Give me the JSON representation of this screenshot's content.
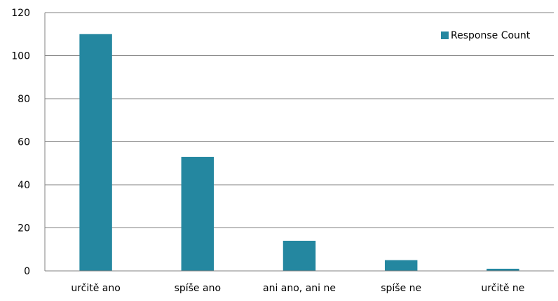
{
  "chart_data": {
    "type": "bar",
    "categories": [
      "určitě ano",
      "spíše ano",
      "ani ano, ani ne",
      "spíše ne",
      "určitě ne"
    ],
    "series": [
      {
        "name": "Response Count",
        "values": [
          110,
          53,
          14,
          5,
          1
        ]
      }
    ],
    "ylim": [
      0,
      120
    ],
    "yticks": [
      "0",
      "20",
      "40",
      "60",
      "80",
      "100",
      "120"
    ],
    "grid": true,
    "legend": "top-right",
    "colors": {
      "bar": "#2487A0",
      "grid": "#808080",
      "axis": "#808080"
    }
  }
}
